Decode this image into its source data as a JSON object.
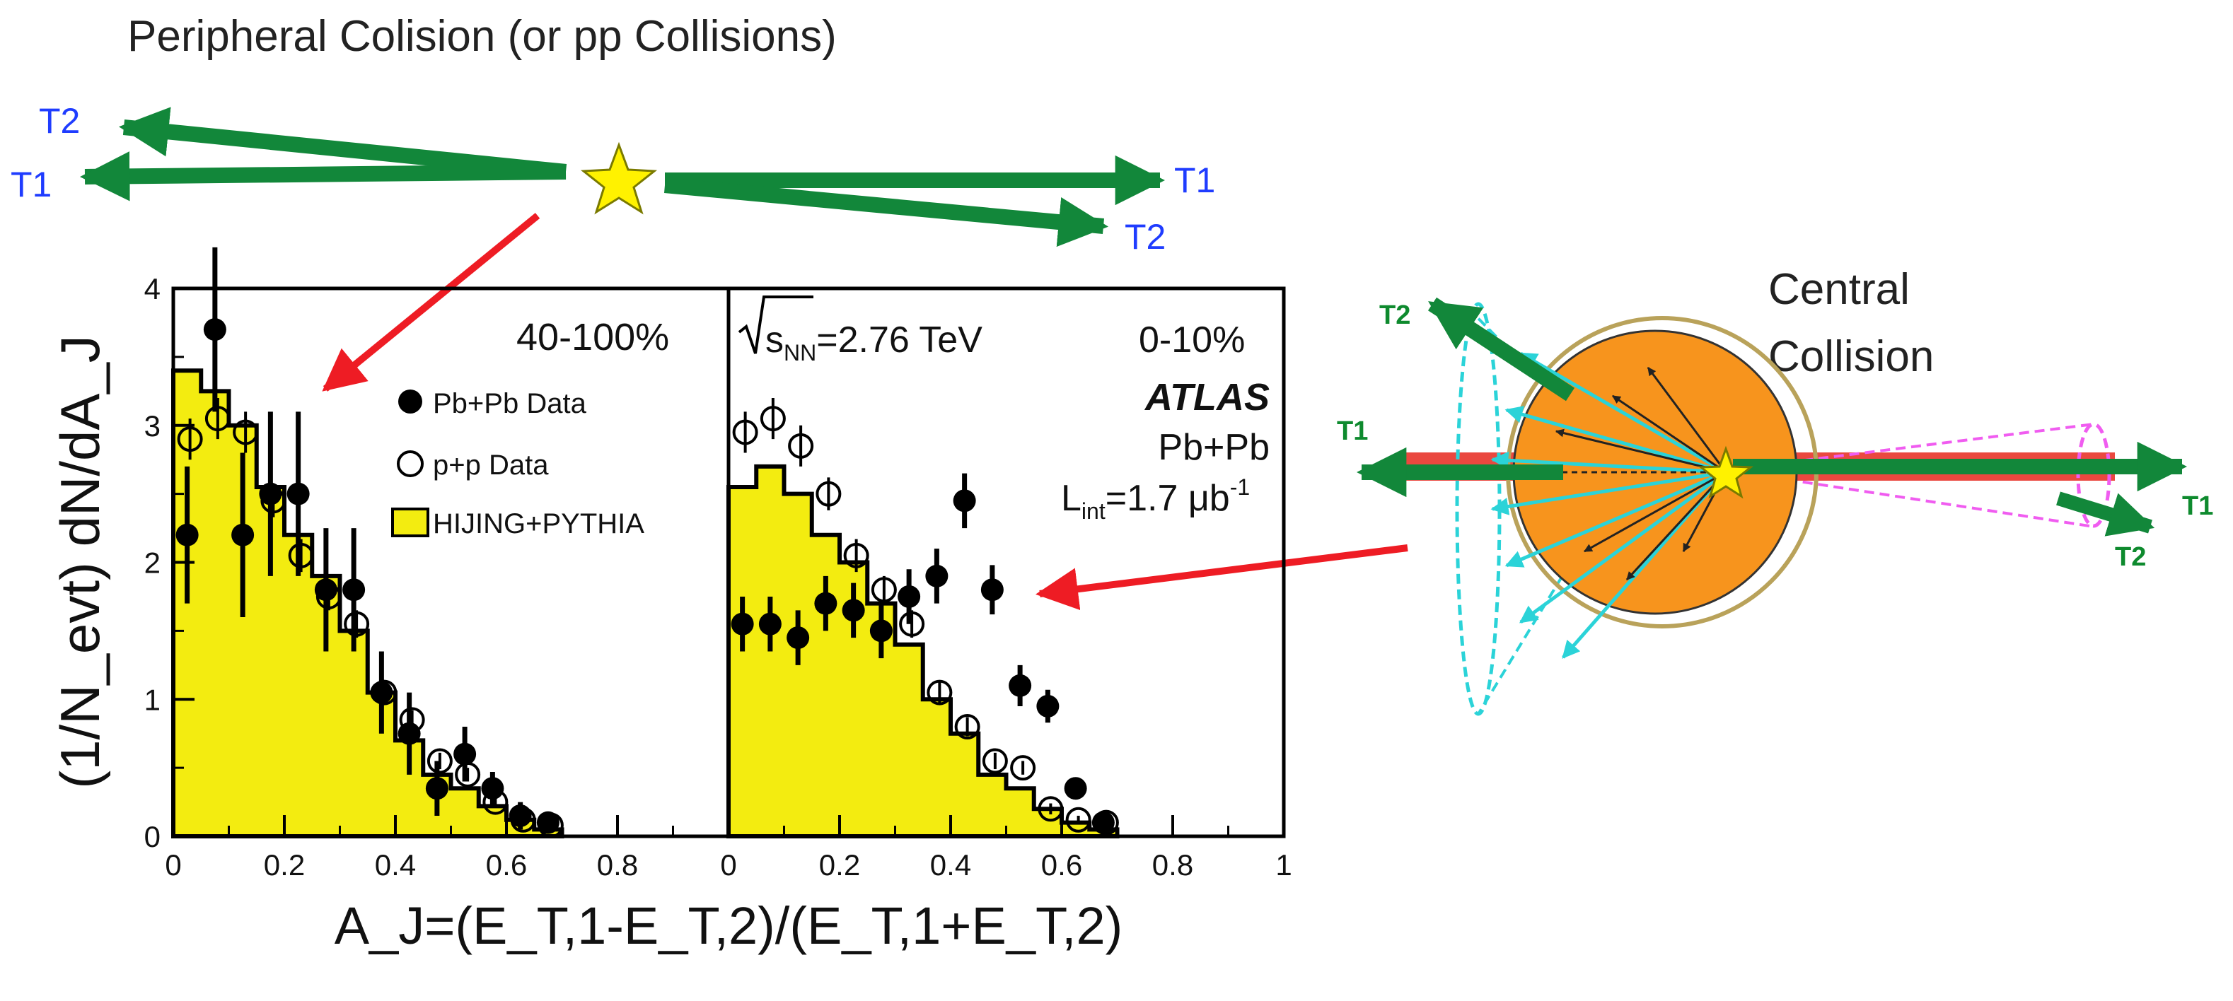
{
  "figure": {
    "peripheral_title": "Peripheral Colision (or pp Collisions)",
    "central_title_line1": "Central",
    "central_title_line2": "Collision",
    "peripheral_labels": {
      "left_T2": "T2",
      "left_T1": "T1",
      "right_T1": "T1",
      "right_T2": "T2"
    },
    "central_labels": {
      "T2_left": "T2",
      "T1_left": "T1",
      "T1_right": "T1",
      "T2_right": "T2"
    }
  },
  "colors": {
    "green_arrow": "#12873a",
    "red_arrow": "#ee1c24",
    "star_fill": "#fff200",
    "label_blue": "#1f3cff",
    "label_green": "#0e8a2e",
    "histogram_fill": "#f3ec10",
    "orange_nucleus": "#f7941d",
    "cyan": "#2bd3d8",
    "magenta": "#f05cf0",
    "red_jet": "#e8342a"
  },
  "chart_data": [
    {
      "type": "bar",
      "panel": "left",
      "annotation": "40-100%",
      "xlabel": "A_J=(E_T,1-E_T,2)/(E_T,1+E_T,2)",
      "ylabel": "(1/N_evt) dN/dA_J",
      "xlim": [
        0,
        1
      ],
      "ylim": [
        0,
        4
      ],
      "x_ticks": [
        "0",
        "0.2",
        "0.4",
        "0.6",
        "0.8"
      ],
      "y_ticks": [
        "0",
        "1",
        "2",
        "3",
        "4"
      ],
      "legend": {
        "entries": [
          "Pb+Pb Data",
          "p+p Data",
          "HIJING+PYTHIA"
        ],
        "placement": "right"
      },
      "series": [
        {
          "name": "HIJING+PYTHIA",
          "kind": "histogram",
          "bin_edges": [
            0,
            0.05,
            0.1,
            0.15,
            0.2,
            0.25,
            0.3,
            0.35,
            0.4,
            0.45,
            0.5,
            0.55,
            0.6,
            0.65,
            0.7
          ],
          "values": [
            3.4,
            3.25,
            3.0,
            2.55,
            2.2,
            1.9,
            1.5,
            1.05,
            0.7,
            0.45,
            0.35,
            0.22,
            0.12,
            0.05
          ]
        },
        {
          "name": "Pb+Pb Data",
          "kind": "points",
          "x": [
            0.025,
            0.075,
            0.125,
            0.175,
            0.225,
            0.275,
            0.325,
            0.375,
            0.425,
            0.475,
            0.525,
            0.575,
            0.625,
            0.675
          ],
          "y": [
            2.2,
            3.7,
            2.2,
            2.5,
            2.5,
            1.8,
            1.8,
            1.05,
            0.75,
            0.35,
            0.6,
            0.35,
            0.15,
            0.1
          ],
          "err": [
            0.5,
            0.6,
            0.6,
            0.6,
            0.6,
            0.45,
            0.45,
            0.3,
            0.3,
            0.2,
            0.2,
            0.12,
            0.1,
            0.08
          ]
        },
        {
          "name": "p+p Data",
          "kind": "points",
          "x": [
            0.025,
            0.075,
            0.125,
            0.175,
            0.225,
            0.275,
            0.325,
            0.375,
            0.425,
            0.475,
            0.525,
            0.575,
            0.625,
            0.675
          ],
          "y": [
            2.9,
            3.05,
            2.95,
            2.45,
            2.05,
            1.75,
            1.55,
            1.05,
            0.85,
            0.55,
            0.45,
            0.25,
            0.12,
            0.08
          ],
          "err": [
            0.15,
            0.15,
            0.15,
            0.12,
            0.12,
            0.1,
            0.1,
            0.08,
            0.07,
            0.06,
            0.05,
            0.04,
            0.03,
            0.02
          ]
        }
      ]
    },
    {
      "type": "bar",
      "panel": "right",
      "annotation_energy_prefix": "s",
      "annotation_energy_sub": "NN",
      "annotation_energy_value": "=2.76 TeV",
      "annotation_centrality": "0-10%",
      "experiment": "ATLAS",
      "system": "Pb+Pb",
      "luminosity_prefix": "L",
      "luminosity_sub": "int",
      "luminosity_value": "=1.7 μb",
      "luminosity_sup": "-1",
      "xlim": [
        0,
        1
      ],
      "ylim": [
        0,
        4
      ],
      "x_ticks": [
        "0",
        "0.2",
        "0.4",
        "0.6",
        "0.8",
        "1"
      ],
      "series": [
        {
          "name": "HIJING+PYTHIA",
          "kind": "histogram",
          "bin_edges": [
            0,
            0.05,
            0.1,
            0.15,
            0.2,
            0.25,
            0.3,
            0.35,
            0.4,
            0.45,
            0.5,
            0.55,
            0.6,
            0.65,
            0.7
          ],
          "values": [
            2.55,
            2.7,
            2.5,
            2.2,
            2.0,
            1.7,
            1.4,
            1.0,
            0.75,
            0.45,
            0.35,
            0.2,
            0.1,
            0.05
          ]
        },
        {
          "name": "Pb+Pb Data",
          "kind": "points",
          "x": [
            0.025,
            0.075,
            0.125,
            0.175,
            0.225,
            0.275,
            0.325,
            0.375,
            0.425,
            0.475,
            0.525,
            0.575,
            0.625,
            0.675
          ],
          "y": [
            1.55,
            1.55,
            1.45,
            1.7,
            1.65,
            1.5,
            1.75,
            1.9,
            2.45,
            1.8,
            1.1,
            0.95,
            0.35,
            0.1
          ],
          "err": [
            0.2,
            0.2,
            0.2,
            0.2,
            0.2,
            0.2,
            0.2,
            0.2,
            0.2,
            0.18,
            0.15,
            0.12,
            0.08,
            0.05
          ]
        },
        {
          "name": "p+p Data",
          "kind": "points",
          "x": [
            0.025,
            0.075,
            0.125,
            0.175,
            0.225,
            0.275,
            0.325,
            0.375,
            0.425,
            0.475,
            0.525,
            0.575,
            0.625,
            0.675
          ],
          "y": [
            2.95,
            3.05,
            2.85,
            2.5,
            2.05,
            1.8,
            1.55,
            1.05,
            0.8,
            0.55,
            0.5,
            0.2,
            0.12,
            0.1
          ],
          "err": [
            0.15,
            0.15,
            0.15,
            0.12,
            0.12,
            0.1,
            0.1,
            0.08,
            0.07,
            0.06,
            0.05,
            0.04,
            0.03,
            0.02
          ]
        }
      ]
    }
  ]
}
